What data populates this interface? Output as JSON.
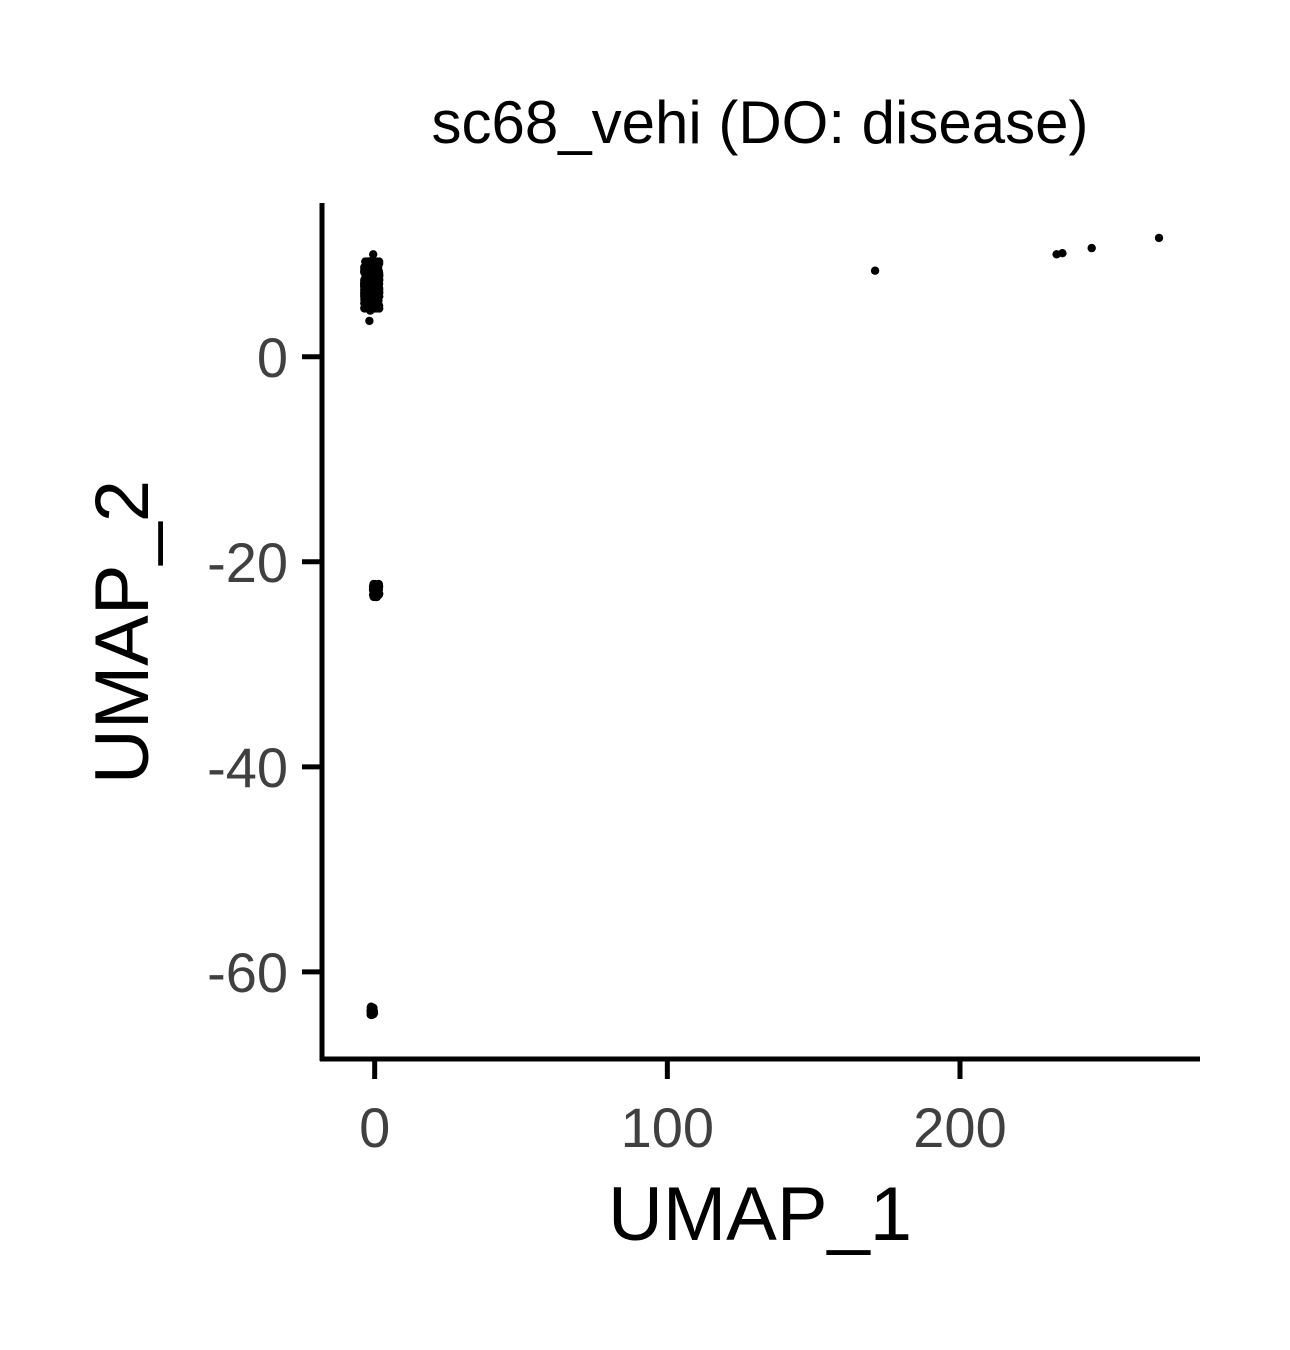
{
  "chart_data": {
    "type": "scatter",
    "title": "sc68_vehi (DO: disease)",
    "xlabel": "UMAP_1",
    "ylabel": "UMAP_2",
    "xlim": [
      -18,
      282
    ],
    "ylim": [
      -68.5,
      15
    ],
    "x_ticks": [
      0,
      100,
      200
    ],
    "x_tick_labels": [
      "0",
      "100",
      "200"
    ],
    "y_ticks": [
      0,
      -20,
      -40,
      -60
    ],
    "y_tick_labels": [
      "0",
      "-20",
      "-40",
      "-60"
    ],
    "grid": false,
    "legend": "none",
    "point_color": "#000000",
    "clusters": [
      {
        "x_center": -1.0,
        "y_center": 7.0,
        "x_spread": 2.2,
        "y_spread": 2.0,
        "n": 900
      },
      {
        "x_center": 0.5,
        "y_center": -22.8,
        "x_spread": 0.9,
        "y_spread": 0.55,
        "n": 120
      },
      {
        "x_center": -0.8,
        "y_center": -63.8,
        "x_spread": 0.5,
        "y_spread": 0.35,
        "n": 60
      }
    ],
    "points": [
      {
        "x": -1.5,
        "y": 4.5
      },
      {
        "x": -1.8,
        "y": 3.5
      },
      {
        "x": -0.5,
        "y": 10.0
      },
      {
        "x": 1.5,
        "y": 8.0
      },
      {
        "x": 171,
        "y": 8.4
      },
      {
        "x": 233,
        "y": 10.0
      },
      {
        "x": 235,
        "y": 10.1
      },
      {
        "x": 245,
        "y": 10.6
      },
      {
        "x": 268,
        "y": 11.6
      }
    ]
  }
}
